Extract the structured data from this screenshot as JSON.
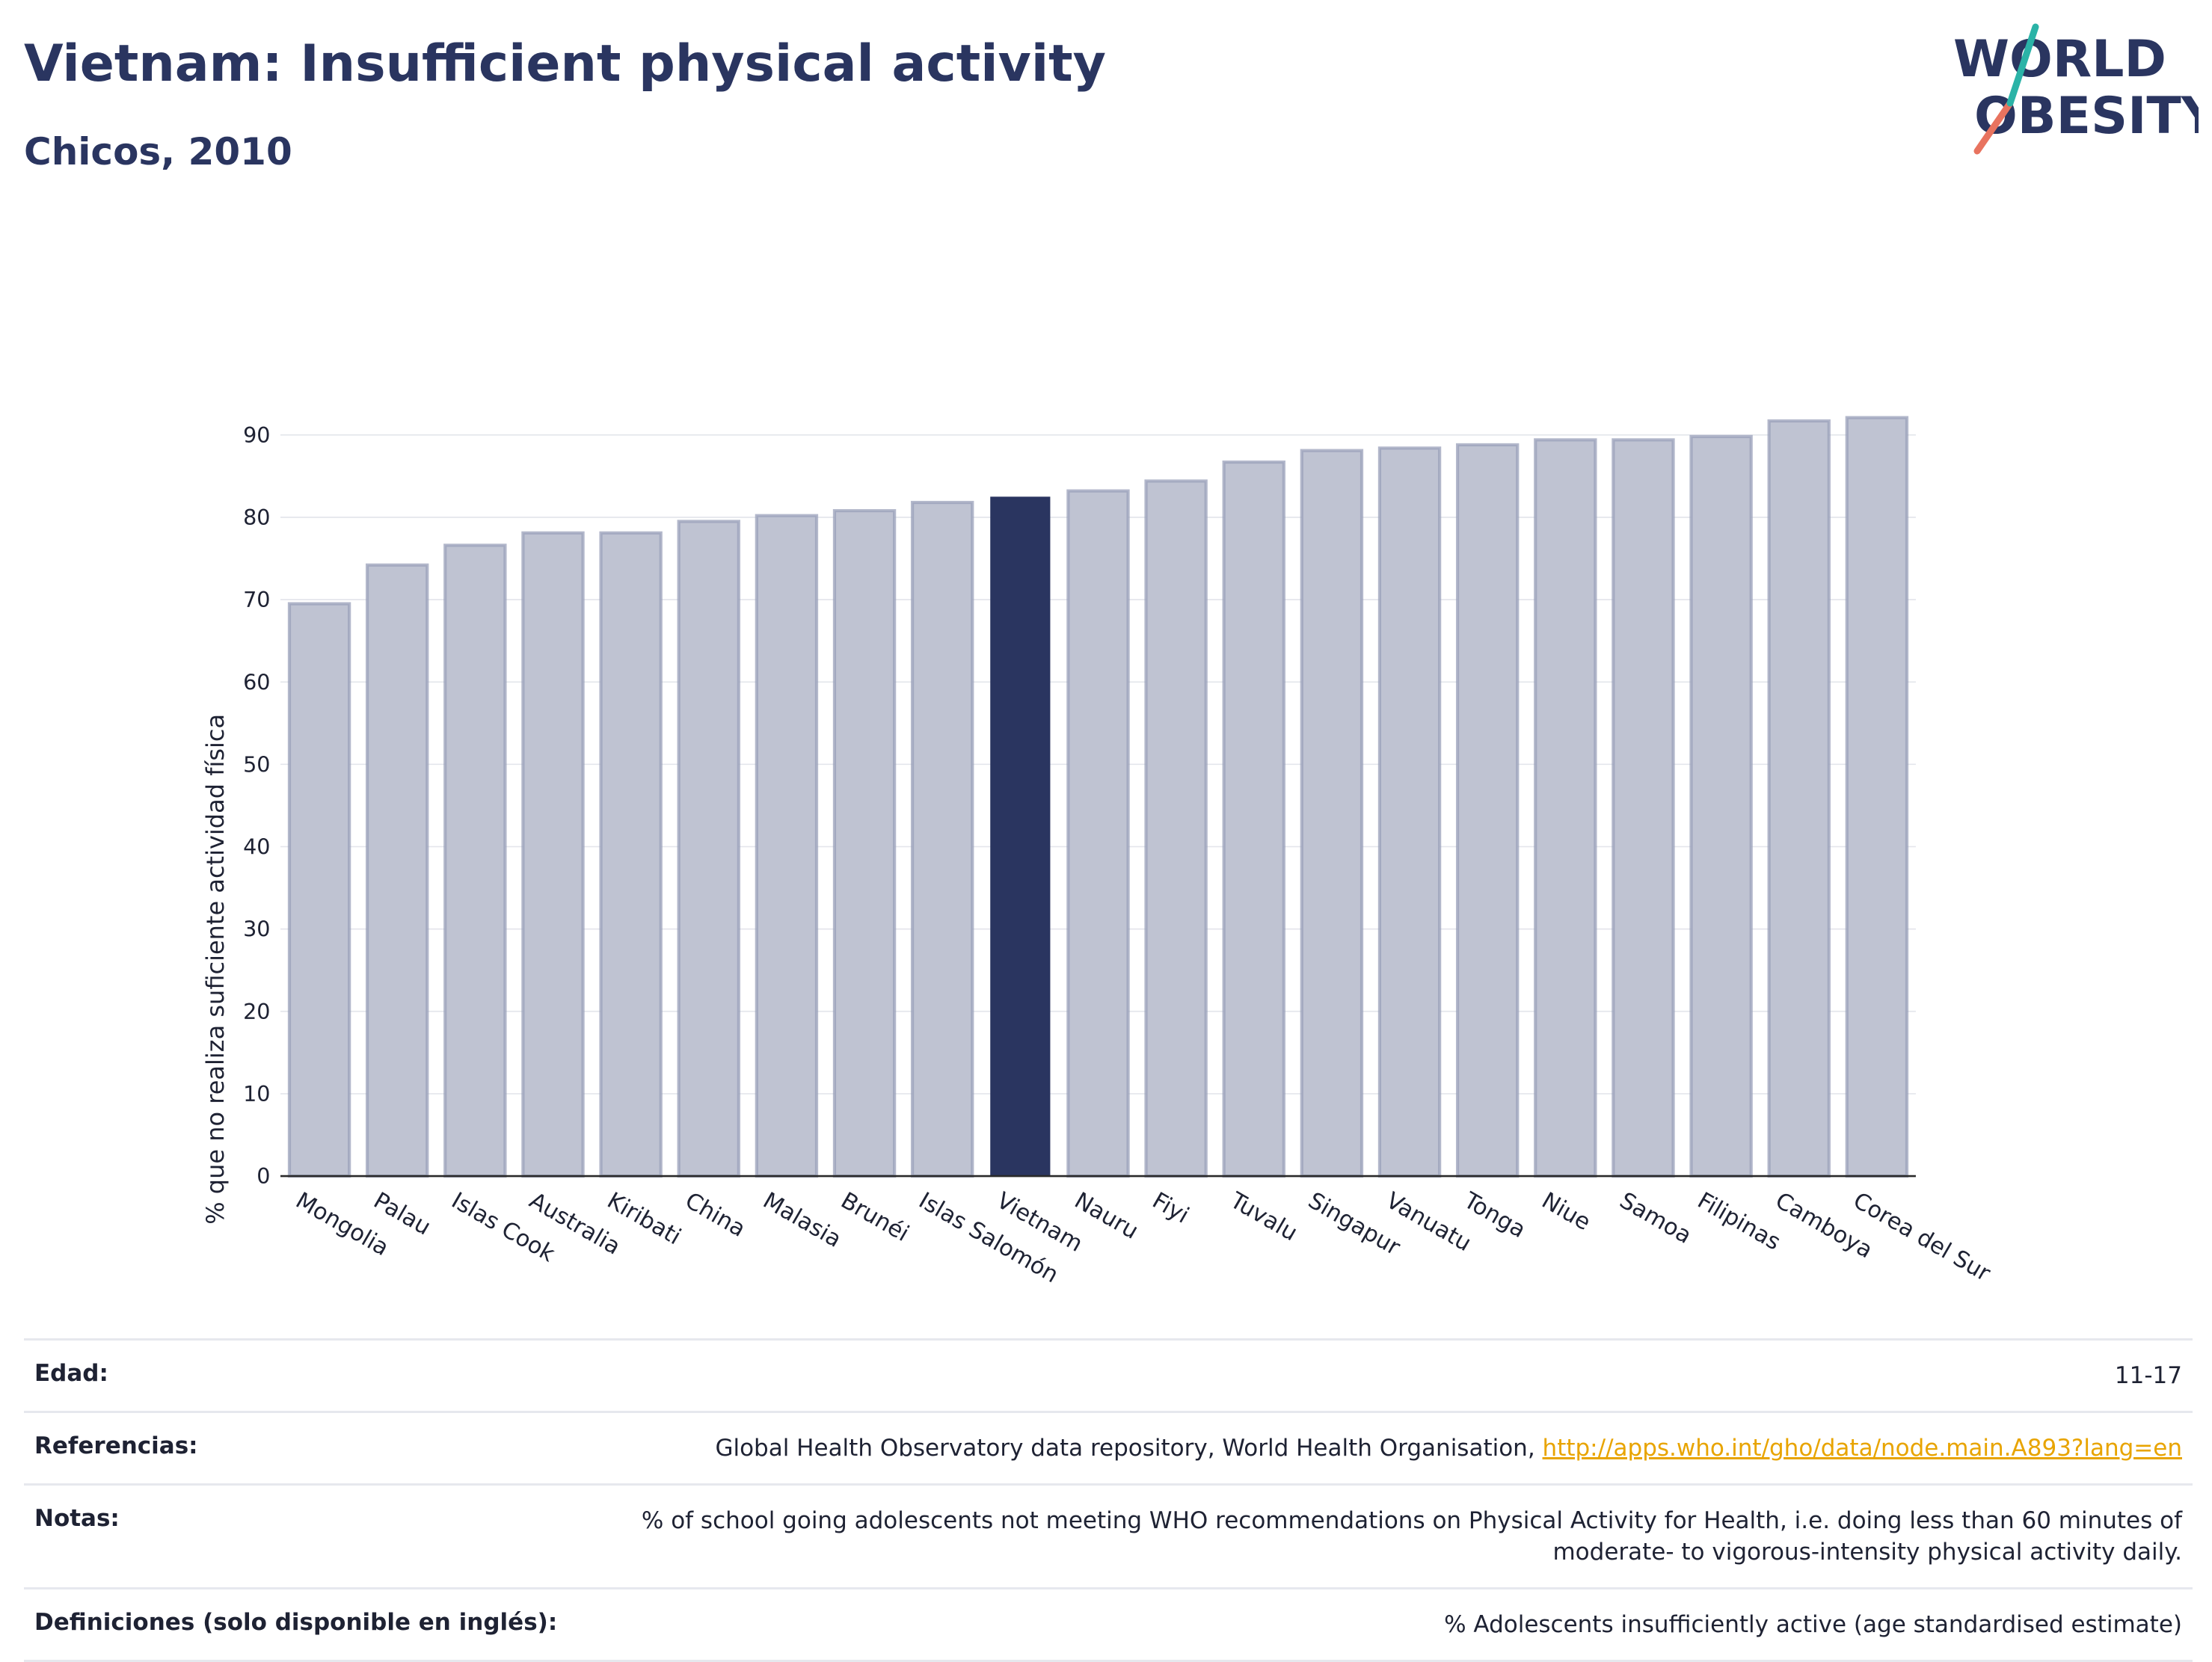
{
  "header": {
    "title": "Vietnam: Insufficient physical activity",
    "subtitle": "Chicos, 2010"
  },
  "logo": {
    "line1": "WORLD",
    "line2": "OBESITY"
  },
  "colors": {
    "bar": "#bfc3d2",
    "bar_outline": "#9aa0ba",
    "highlight": "#2a3560",
    "grid": "#e4e6ec",
    "axis": "#2a2a2a",
    "logo_teal": "#2bb3a7",
    "logo_coral": "#e8735f"
  },
  "chart_data": {
    "type": "bar",
    "title": "Vietnam: Insufficient physical activity",
    "subtitle": "Chicos, 2010",
    "xlabel": "",
    "ylabel": "% que no realiza suficiente actividad física",
    "ylim": [
      0,
      95
    ],
    "yticks": [
      0,
      10,
      20,
      30,
      40,
      50,
      60,
      70,
      80,
      90
    ],
    "grid": true,
    "highlight": "Vietnam",
    "categories": [
      "Mongolia",
      "Palau",
      "Islas Cook",
      "Australia",
      "Kiribati",
      "China",
      "Malasia",
      "Brunéi",
      "Islas Salomón",
      "Vietnam",
      "Nauru",
      "Fiyi",
      "Tuvalu",
      "Singapur",
      "Vanuatu",
      "Tonga",
      "Niue",
      "Samoa",
      "Filipinas",
      "Camboya",
      "Corea del Sur"
    ],
    "values": [
      69.5,
      74.2,
      76.6,
      78.1,
      78.1,
      79.5,
      80.2,
      80.8,
      81.8,
      82.5,
      83.2,
      84.4,
      86.7,
      88.1,
      88.4,
      88.8,
      89.4,
      89.4,
      89.8,
      91.7,
      92.1
    ]
  },
  "meta": {
    "rows": [
      {
        "label": "Edad:",
        "value": "11-17"
      },
      {
        "label": "Referencias:",
        "value": "Global Health Observatory data repository, World Health Organisation, ",
        "link": "http://apps.who.int/gho/data/node.main.A893?lang=en"
      },
      {
        "label": "Notas:",
        "value": "% of school going adolescents not meeting WHO recommendations on Physical Activity for Health, i.e. doing less than 60 minutes of moderate- to vigorous-intensity physical activity daily."
      },
      {
        "label": "Definiciones (solo disponible en inglés):",
        "value": "% Adolescents insufficiently active (age standardised estimate)"
      }
    ]
  }
}
